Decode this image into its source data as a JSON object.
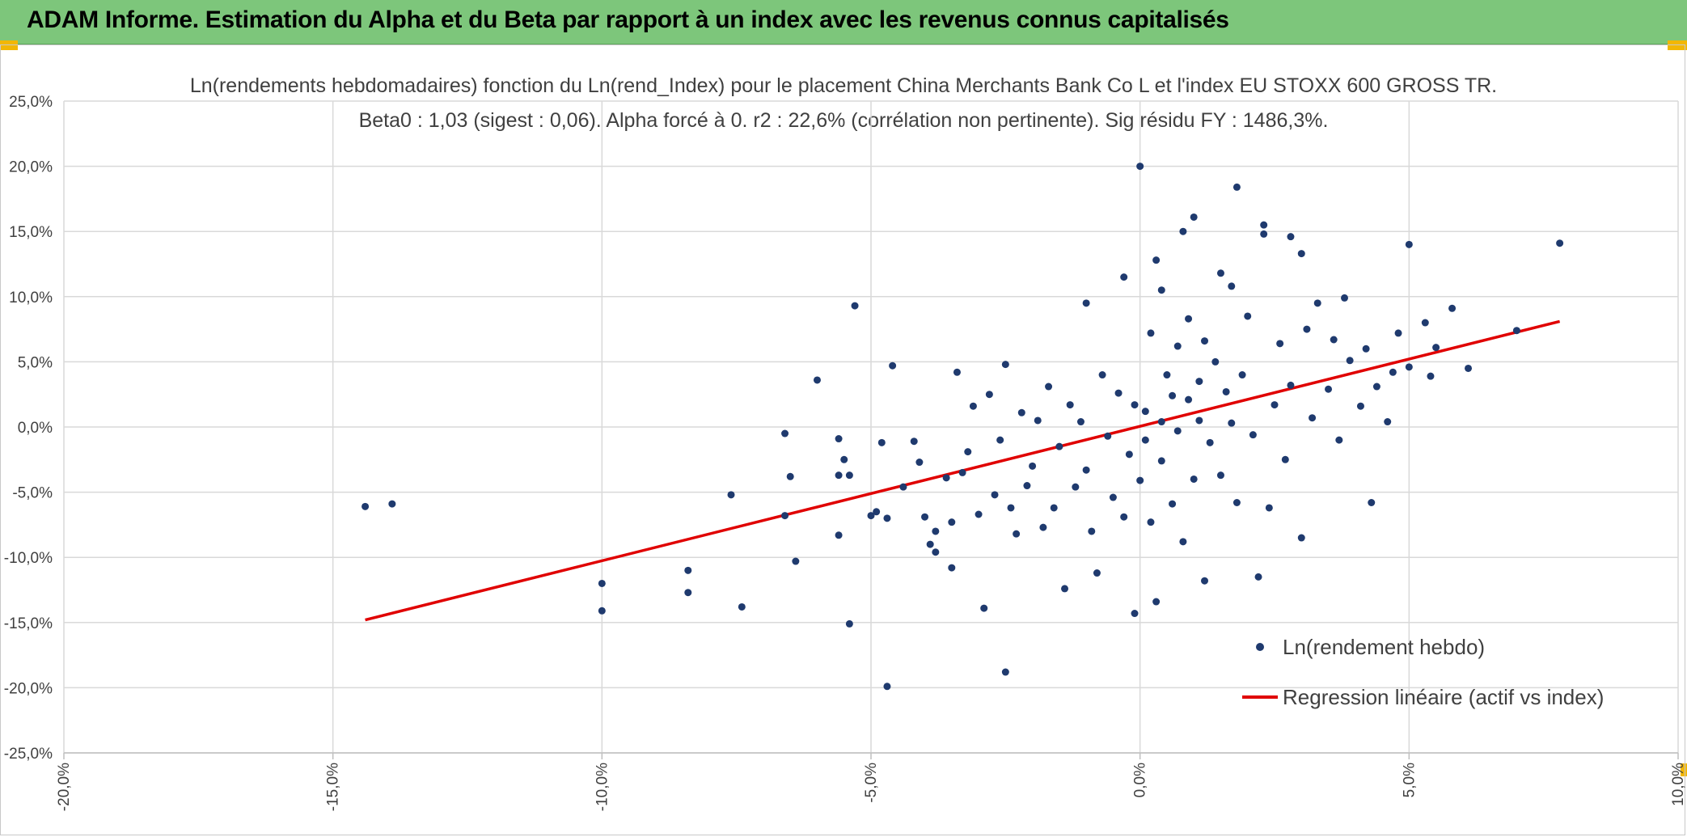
{
  "header": {
    "title": "ADAM Informe. Estimation du Alpha et du Beta par rapport à un index avec les revenus connus capitalisés"
  },
  "colors": {
    "banner": "#7dc67b",
    "accent": "#f2b705",
    "points": "#1f3a6e",
    "regression": "#e00000",
    "grid": "#d9d9d9"
  },
  "chart_data": {
    "type": "scatter",
    "title": "Ln(rendements hebdomadaires) fonction du Ln(rend_Index) pour le placement China Merchants Bank Co L et l'index EU STOXX 600 GROSS TR.",
    "subtitle": "Beta0 : 1,03 (sigest : 0,06). Alpha forcé à 0. r2 : 22,6% (corrélation non pertinente). Sig résidu FY : 1486,3%.",
    "xlim": [
      -0.2,
      0.1
    ],
    "ylim": [
      -0.25,
      0.25
    ],
    "x_ticks": [
      "-20,0%",
      "-15,0%",
      "-10,0%",
      "-5,0%",
      "0,0%",
      "5,0%",
      "10,0%"
    ],
    "y_ticks": [
      "25,0%",
      "20,0%",
      "15,0%",
      "10,0%",
      "5,0%",
      "0,0%",
      "-5,0%",
      "-10,0%",
      "-15,0%",
      "-20,0%",
      "-25,0%"
    ],
    "grid": true,
    "legend_position": "bottom-right",
    "series": [
      {
        "name": "Ln(rendement hebdo)",
        "kind": "scatter",
        "points": [
          [
            -0.144,
            -0.061
          ],
          [
            -0.139,
            -0.059
          ],
          [
            -0.1,
            -0.12
          ],
          [
            -0.1,
            -0.141
          ],
          [
            -0.084,
            -0.11
          ],
          [
            -0.084,
            -0.127
          ],
          [
            -0.076,
            -0.052
          ],
          [
            -0.074,
            -0.138
          ],
          [
            -0.066,
            -0.005
          ],
          [
            -0.066,
            -0.068
          ],
          [
            -0.065,
            -0.038
          ],
          [
            -0.064,
            -0.103
          ],
          [
            -0.06,
            0.036
          ],
          [
            -0.056,
            -0.009
          ],
          [
            -0.056,
            -0.037
          ],
          [
            -0.056,
            -0.083
          ],
          [
            -0.055,
            -0.025
          ],
          [
            -0.054,
            -0.037
          ],
          [
            -0.054,
            -0.151
          ],
          [
            -0.053,
            0.093
          ],
          [
            -0.05,
            -0.068
          ],
          [
            -0.049,
            -0.065
          ],
          [
            -0.048,
            -0.012
          ],
          [
            -0.047,
            -0.07
          ],
          [
            -0.047,
            -0.199
          ],
          [
            -0.046,
            0.047
          ],
          [
            -0.044,
            -0.046
          ],
          [
            -0.042,
            -0.011
          ],
          [
            -0.041,
            -0.027
          ],
          [
            -0.04,
            -0.069
          ],
          [
            -0.039,
            -0.09
          ],
          [
            -0.038,
            -0.08
          ],
          [
            -0.038,
            -0.096
          ],
          [
            -0.036,
            -0.039
          ],
          [
            -0.035,
            -0.073
          ],
          [
            -0.035,
            -0.108
          ],
          [
            -0.034,
            0.042
          ],
          [
            -0.033,
            -0.035
          ],
          [
            -0.032,
            -0.019
          ],
          [
            -0.031,
            0.016
          ],
          [
            -0.03,
            -0.067
          ],
          [
            -0.029,
            -0.139
          ],
          [
            -0.028,
            0.025
          ],
          [
            -0.027,
            -0.052
          ],
          [
            -0.026,
            -0.01
          ],
          [
            -0.025,
            0.048
          ],
          [
            -0.025,
            -0.188
          ],
          [
            -0.024,
            -0.062
          ],
          [
            -0.023,
            -0.082
          ],
          [
            -0.022,
            0.011
          ],
          [
            -0.021,
            -0.045
          ],
          [
            -0.02,
            -0.03
          ],
          [
            -0.019,
            0.005
          ],
          [
            -0.018,
            -0.077
          ],
          [
            -0.017,
            0.031
          ],
          [
            -0.016,
            -0.062
          ],
          [
            -0.015,
            -0.015
          ],
          [
            -0.014,
            -0.124
          ],
          [
            -0.013,
            0.017
          ],
          [
            -0.012,
            -0.046
          ],
          [
            -0.011,
            0.004
          ],
          [
            -0.01,
            0.095
          ],
          [
            -0.01,
            -0.033
          ],
          [
            -0.009,
            -0.08
          ],
          [
            -0.008,
            -0.112
          ],
          [
            -0.007,
            0.04
          ],
          [
            -0.006,
            -0.007
          ],
          [
            -0.005,
            -0.054
          ],
          [
            -0.004,
            0.026
          ],
          [
            -0.003,
            0.115
          ],
          [
            -0.003,
            -0.069
          ],
          [
            -0.002,
            -0.021
          ],
          [
            -0.001,
            0.017
          ],
          [
            -0.001,
            -0.143
          ],
          [
            0.0,
            0.2
          ],
          [
            0.0,
            -0.041
          ],
          [
            0.001,
            0.012
          ],
          [
            0.001,
            -0.01
          ],
          [
            0.002,
            0.072
          ],
          [
            0.002,
            -0.073
          ],
          [
            0.003,
            0.128
          ],
          [
            0.003,
            -0.134
          ],
          [
            0.004,
            0.004
          ],
          [
            0.004,
            0.105
          ],
          [
            0.004,
            -0.026
          ],
          [
            0.005,
            0.04
          ],
          [
            0.006,
            -0.059
          ],
          [
            0.006,
            0.024
          ],
          [
            0.007,
            0.062
          ],
          [
            0.007,
            -0.003
          ],
          [
            0.008,
            0.15
          ],
          [
            0.008,
            -0.088
          ],
          [
            0.009,
            0.021
          ],
          [
            0.009,
            0.083
          ],
          [
            0.01,
            0.161
          ],
          [
            0.01,
            -0.04
          ],
          [
            0.011,
            0.035
          ],
          [
            0.011,
            0.005
          ],
          [
            0.012,
            0.066
          ],
          [
            0.012,
            -0.118
          ],
          [
            0.013,
            -0.012
          ],
          [
            0.014,
            0.05
          ],
          [
            0.015,
            0.118
          ],
          [
            0.015,
            -0.037
          ],
          [
            0.016,
            0.027
          ],
          [
            0.017,
            0.108
          ],
          [
            0.017,
            0.003
          ],
          [
            0.018,
            0.184
          ],
          [
            0.018,
            -0.058
          ],
          [
            0.019,
            0.04
          ],
          [
            0.02,
            0.085
          ],
          [
            0.021,
            -0.006
          ],
          [
            0.022,
            -0.115
          ],
          [
            0.023,
            0.148
          ],
          [
            0.023,
            0.155
          ],
          [
            0.024,
            -0.062
          ],
          [
            0.025,
            0.017
          ],
          [
            0.026,
            0.064
          ],
          [
            0.027,
            -0.025
          ],
          [
            0.028,
            0.146
          ],
          [
            0.028,
            0.032
          ],
          [
            0.03,
            0.133
          ],
          [
            0.03,
            -0.085
          ],
          [
            0.031,
            0.075
          ],
          [
            0.032,
            0.007
          ],
          [
            0.033,
            0.095
          ],
          [
            0.035,
            0.029
          ],
          [
            0.036,
            0.067
          ],
          [
            0.037,
            -0.01
          ],
          [
            0.038,
            0.099
          ],
          [
            0.039,
            0.051
          ],
          [
            0.041,
            0.016
          ],
          [
            0.042,
            0.06
          ],
          [
            0.043,
            -0.058
          ],
          [
            0.044,
            0.031
          ],
          [
            0.046,
            0.004
          ],
          [
            0.047,
            0.042
          ],
          [
            0.048,
            0.072
          ],
          [
            0.05,
            0.046
          ],
          [
            0.05,
            0.14
          ],
          [
            0.053,
            0.08
          ],
          [
            0.054,
            0.039
          ],
          [
            0.055,
            0.061
          ],
          [
            0.058,
            0.091
          ],
          [
            0.061,
            0.045
          ],
          [
            0.07,
            0.074
          ],
          [
            0.078,
            0.141
          ]
        ]
      },
      {
        "name": "Regression linéaire (actif vs index)",
        "kind": "line",
        "points": [
          [
            -0.144,
            -0.148
          ],
          [
            0.078,
            0.081
          ]
        ]
      }
    ]
  }
}
